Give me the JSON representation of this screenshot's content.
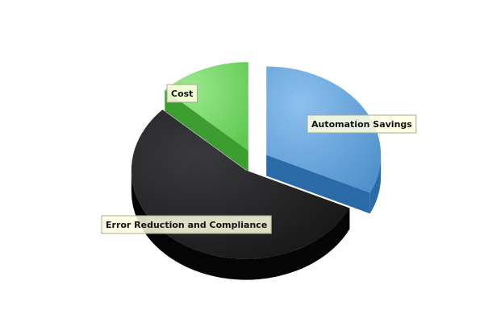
{
  "chart_data": {
    "type": "pie",
    "style": "3d-exploded",
    "title": "",
    "legend": "none",
    "slices": [
      {
        "label": "Automation Savings",
        "value": 32,
        "color": "#5b9bd5"
      },
      {
        "label": "Error Reduction and Compliance",
        "value": 55,
        "color": "#1e1e20"
      },
      {
        "label": "Cost",
        "value": 13,
        "color": "#6cd35e"
      }
    ]
  }
}
